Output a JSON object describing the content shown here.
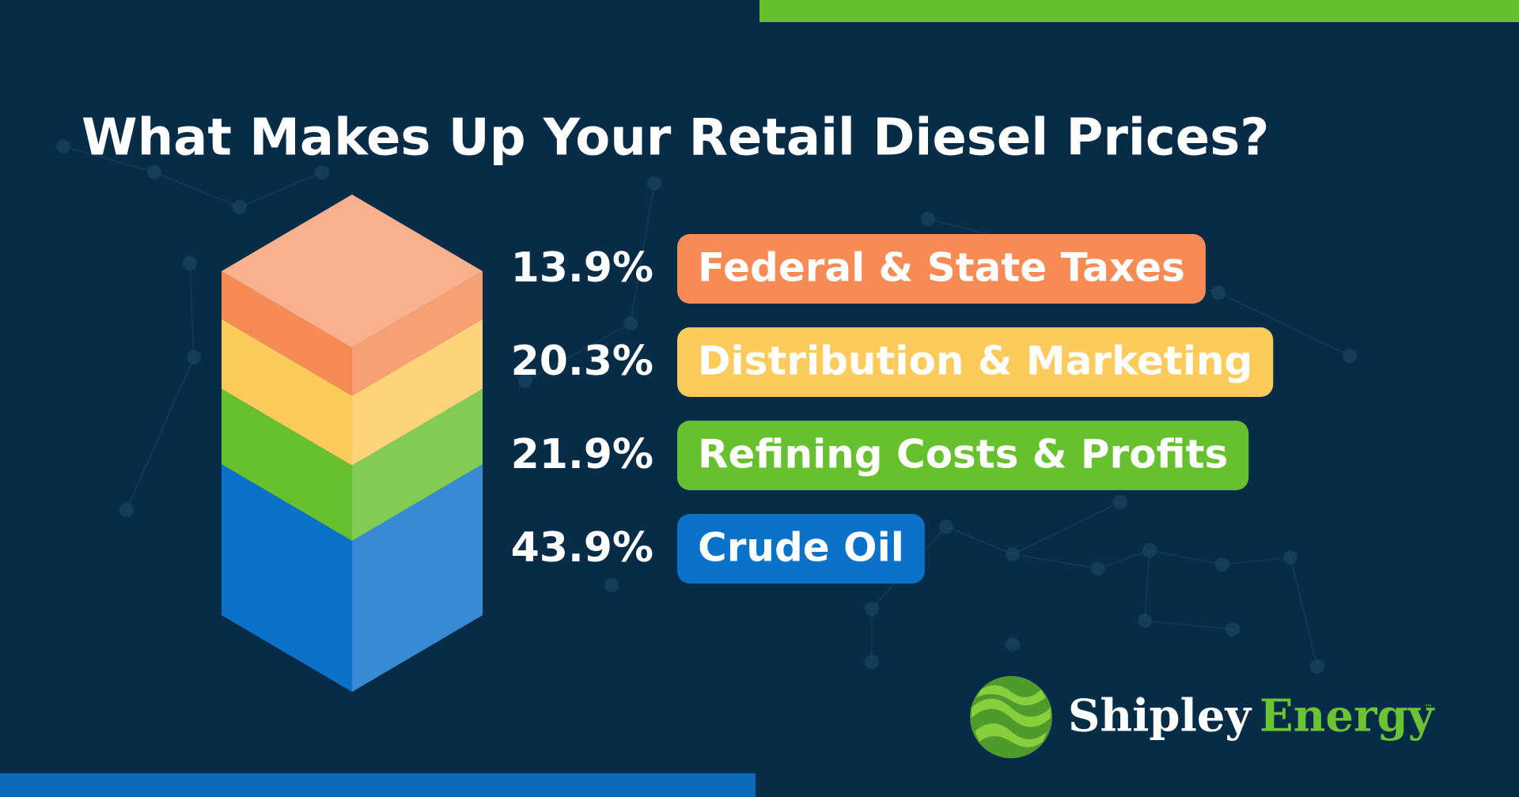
{
  "chart_data": {
    "type": "stacked-column",
    "title": "What Makes Up Your Retail Diesel Prices?",
    "series": [
      {
        "name": "Federal & State Taxes",
        "color": "#f68b56",
        "values": [
          13.9
        ],
        "value_labels": [
          "13.9%"
        ]
      },
      {
        "name": "Distribution & Marketing",
        "color": "#fdcb5c",
        "values": [
          20.3
        ],
        "value_labels": [
          "20.3%"
        ]
      },
      {
        "name": "Refining Costs & Profits",
        "color": "#66c02f",
        "values": [
          21.9
        ],
        "value_labels": [
          "21.9%"
        ]
      },
      {
        "name": "Crude Oil",
        "color": "#0a72c9",
        "values": [
          43.9
        ],
        "value_labels": [
          "43.9%"
        ]
      }
    ]
  },
  "logo": {
    "first": "Shipley",
    "second": "Energy",
    "mark": "™"
  }
}
